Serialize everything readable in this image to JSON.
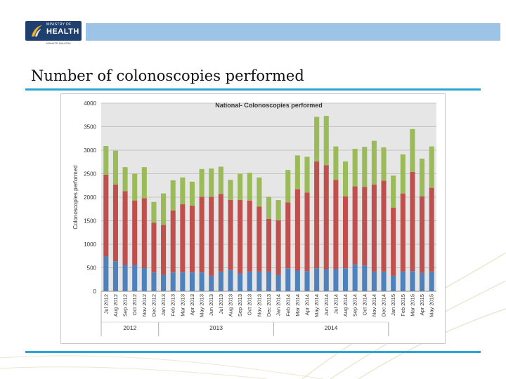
{
  "header": {
    "logo_small": "MINISTRY OF",
    "logo_big": "HEALTH",
    "logo_sub": "MANATŪ HAUORA"
  },
  "slide": {
    "title": "Number of colonoscopies performed"
  },
  "colors": {
    "series1": "#4f81bd",
    "series2": "#c0504d",
    "series3": "#9bbb59",
    "plot_bg": "#e6e6e6",
    "accent_rule": "#2aa5d6",
    "topbar": "#9dc3e6"
  },
  "chart_data": {
    "type": "bar",
    "stacked": true,
    "title": "National- Colonoscopies performed",
    "xlabel": "",
    "ylabel": "Colonoscopies performed",
    "ylim": [
      0,
      4000
    ],
    "yticks": [
      0,
      500,
      1000,
      1500,
      2000,
      2500,
      3000,
      3500,
      4000
    ],
    "grid": true,
    "legend": "none",
    "categories": [
      "Jul 2012",
      "Aug 2012",
      "Sep 2012",
      "Oct 2012",
      "Nov 2012",
      "Dec 2012",
      "Jan 2013",
      "Feb 2013",
      "Mar 2013",
      "Apr 2013",
      "May 2013",
      "Jun 2013",
      "Jul 2013",
      "Aug 2013",
      "Sep 2013",
      "Oct 2013",
      "Nov 2013",
      "Dec 2013",
      "Jan 2014",
      "Feb 2014",
      "Mar 2014",
      "Apr 2014",
      "May 2014",
      "Jun 2014",
      "Jul 2014",
      "Aug 2014",
      "Sep 2014",
      "Oct 2014",
      "Nov 2014",
      "Dec 2014",
      "Jan 2015",
      "Feb 2015",
      "Mar 2015",
      "Apr 2015",
      "May 2015"
    ],
    "year_groups": [
      {
        "label": "2012",
        "start": 0,
        "end": 5
      },
      {
        "label": "2013",
        "start": 6,
        "end": 17
      },
      {
        "label": "2014",
        "start": 18,
        "end": 29
      }
    ],
    "series": [
      {
        "values": [
          740,
          640,
          560,
          560,
          500,
          400,
          350,
          400,
          400,
          400,
          400,
          330,
          420,
          450,
          380,
          420,
          420,
          420,
          350,
          490,
          440,
          430,
          490,
          470,
          470,
          490,
          570,
          550,
          420,
          420,
          330,
          420,
          430,
          390,
          420
        ]
      },
      {
        "values": [
          1740,
          1630,
          1570,
          1370,
          1480,
          1060,
          1060,
          1320,
          1450,
          1420,
          1610,
          1680,
          1650,
          1490,
          1560,
          1510,
          1380,
          1120,
          1160,
          1400,
          1730,
          1670,
          2270,
          2210,
          1900,
          1530,
          1660,
          1670,
          1850,
          1930,
          1450,
          1660,
          2110,
          1630,
          1780
        ]
      },
      {
        "values": [
          610,
          720,
          510,
          570,
          660,
          440,
          670,
          640,
          570,
          510,
          590,
          600,
          580,
          430,
          560,
          590,
          620,
          470,
          430,
          690,
          720,
          760,
          950,
          1050,
          710,
          740,
          800,
          850,
          930,
          710,
          680,
          830,
          910,
          800,
          880
        ]
      }
    ]
  }
}
